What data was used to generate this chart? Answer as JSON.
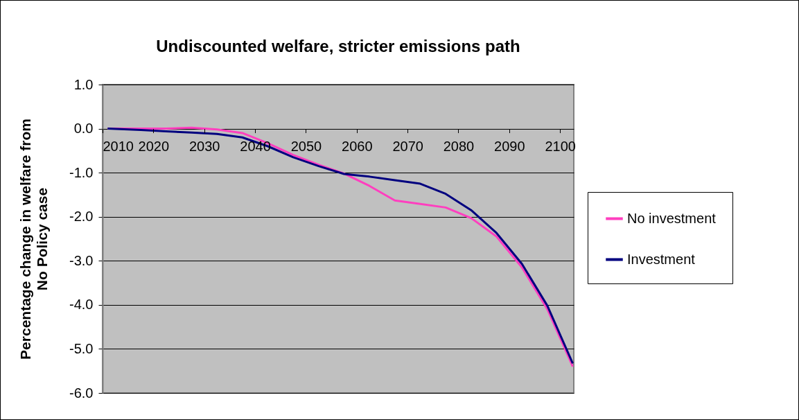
{
  "chart_data": {
    "type": "line",
    "title": "Undiscounted welfare, stricter emissions path",
    "ylabel": "Percentage change in welfare from\nNo Policy case",
    "x": [
      2011,
      2017.5,
      2022.5,
      2027.5,
      2032.5,
      2037.5,
      2042.5,
      2047.5,
      2052.5,
      2057.5,
      2062.5,
      2067.5,
      2072.5,
      2077.5,
      2082.5,
      2087.5,
      2092.5,
      2097.5,
      2102.5
    ],
    "series": [
      {
        "name": "No investment",
        "color": "#ff3fbf",
        "values": [
          0,
          0,
          0,
          0.02,
          -0.02,
          -0.1,
          -0.33,
          -0.6,
          -0.82,
          -1.02,
          -1.3,
          -1.63,
          -1.71,
          -1.79,
          -2.03,
          -2.45,
          -3.15,
          -4.1,
          -5.4
        ]
      },
      {
        "name": "Investment",
        "color": "#00007f",
        "values": [
          0,
          -0.03,
          -0.06,
          -0.09,
          -0.12,
          -0.2,
          -0.4,
          -0.65,
          -0.85,
          -1.03,
          -1.09,
          -1.17,
          -1.25,
          -1.48,
          -1.85,
          -2.37,
          -3.07,
          -4.02,
          -5.33
        ]
      }
    ],
    "xlim": [
      2010,
      2102.7
    ],
    "xticks": [
      2010,
      2020,
      2030,
      2040,
      2050,
      2060,
      2070,
      2080,
      2090,
      2100
    ],
    "ylim": [
      -6,
      1
    ],
    "yticks": [
      {
        "value": 1,
        "label": "1.0"
      },
      {
        "value": 0,
        "label": "0.0"
      },
      {
        "value": -1,
        "label": "-1.0"
      },
      {
        "value": -2,
        "label": "-2.0"
      },
      {
        "value": -3,
        "label": "-3.0"
      },
      {
        "value": -4,
        "label": "-4.0"
      },
      {
        "value": -5,
        "label": "-5.0"
      },
      {
        "value": -6,
        "label": "-6.0"
      }
    ],
    "grid": "y",
    "legend": "right",
    "marker": "none",
    "line_style": "solid"
  }
}
